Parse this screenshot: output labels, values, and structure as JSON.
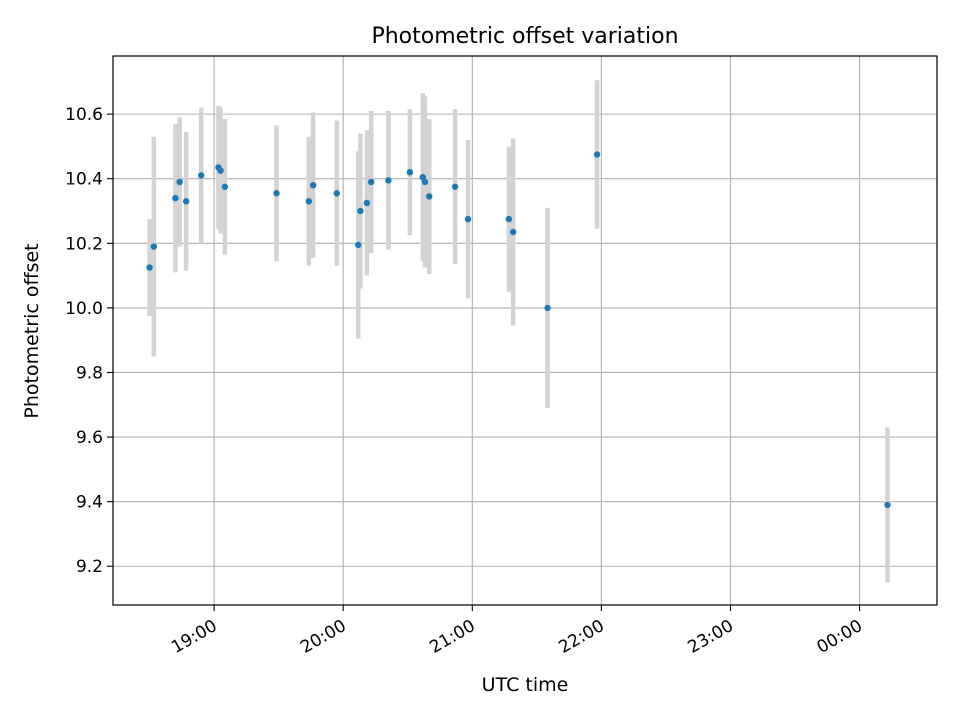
{
  "chart_data": {
    "type": "scatter",
    "title": "Photometric offset variation",
    "xlabel": "UTC time",
    "ylabel": "Photometric offset",
    "x_is_time": true,
    "xlim": [
      "18:13",
      "00:36"
    ],
    "ylim": [
      9.08,
      10.78
    ],
    "x_ticks": [
      "19:00",
      "20:00",
      "21:00",
      "22:00",
      "23:00",
      "00:00"
    ],
    "y_ticks": [
      "9.2",
      "9.4",
      "9.6",
      "9.8",
      "10.0",
      "10.2",
      "10.4",
      "10.6"
    ],
    "grid": true,
    "legend": "none",
    "marker_color": "#1f77b4",
    "errorbar_color": "#d3d3d3",
    "points": [
      {
        "t": "18:30",
        "y": 10.125,
        "yerr": 0.15
      },
      {
        "t": "18:32",
        "y": 10.19,
        "yerr": 0.34
      },
      {
        "t": "18:42",
        "y": 10.34,
        "yerr": 0.23
      },
      {
        "t": "18:44",
        "y": 10.39,
        "yerr": 0.2
      },
      {
        "t": "18:47",
        "y": 10.33,
        "yerr": 0.215
      },
      {
        "t": "18:54",
        "y": 10.41,
        "yerr": 0.21
      },
      {
        "t": "19:02",
        "y": 10.435,
        "yerr": 0.19
      },
      {
        "t": "19:03",
        "y": 10.425,
        "yerr": 0.195
      },
      {
        "t": "19:05",
        "y": 10.375,
        "yerr": 0.21
      },
      {
        "t": "19:29",
        "y": 10.355,
        "yerr": 0.21
      },
      {
        "t": "19:44",
        "y": 10.33,
        "yerr": 0.2
      },
      {
        "t": "19:46",
        "y": 10.38,
        "yerr": 0.225
      },
      {
        "t": "19:57",
        "y": 10.355,
        "yerr": 0.225
      },
      {
        "t": "20:07",
        "y": 10.195,
        "yerr": 0.29
      },
      {
        "t": "20:08",
        "y": 10.3,
        "yerr": 0.24
      },
      {
        "t": "20:11",
        "y": 10.325,
        "yerr": 0.225
      },
      {
        "t": "20:13",
        "y": 10.39,
        "yerr": 0.22
      },
      {
        "t": "20:21",
        "y": 10.395,
        "yerr": 0.215
      },
      {
        "t": "20:31",
        "y": 10.42,
        "yerr": 0.195
      },
      {
        "t": "20:37",
        "y": 10.405,
        "yerr": 0.26
      },
      {
        "t": "20:38",
        "y": 10.39,
        "yerr": 0.265
      },
      {
        "t": "20:40",
        "y": 10.345,
        "yerr": 0.24
      },
      {
        "t": "20:52",
        "y": 10.375,
        "yerr": 0.24
      },
      {
        "t": "20:58",
        "y": 10.275,
        "yerr": 0.245
      },
      {
        "t": "21:17",
        "y": 10.275,
        "yerr": 0.225
      },
      {
        "t": "21:19",
        "y": 10.235,
        "yerr": 0.29
      },
      {
        "t": "21:35",
        "y": 10.0,
        "yerr": 0.31
      },
      {
        "t": "21:58",
        "y": 10.475,
        "yerr": 0.23
      },
      {
        "t": "00:13",
        "y": 9.39,
        "yerr": 0.24
      }
    ]
  }
}
